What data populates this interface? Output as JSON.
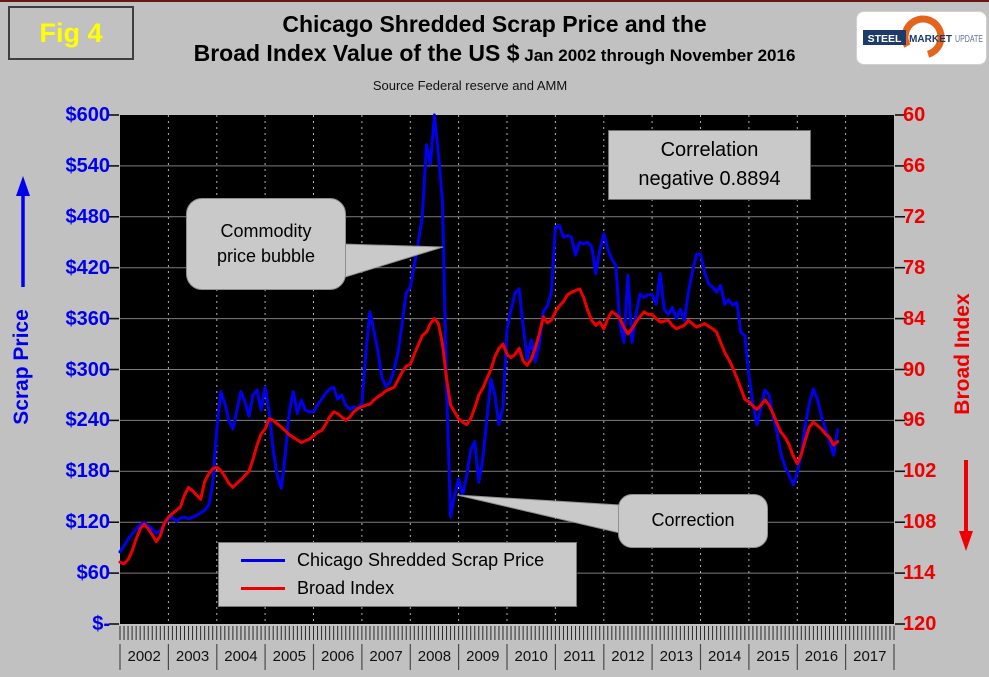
{
  "fig_label": "Fig 4",
  "title": {
    "line1": "Chicago Shredded Scrap Price and the",
    "line2": "Broad Index Value of the US $",
    "line2_suffix": " Jan 2002 through November 2016",
    "subtitle": "Source Federal reserve and AMM"
  },
  "logo": {
    "steel": "STEEL",
    "market": "MARKET",
    "update": "UPDATE"
  },
  "axes": {
    "left": {
      "label": "Scrap Price",
      "color": "#0000ee",
      "ticks": [
        "$600",
        "$540",
        "$480",
        "$420",
        "$360",
        "$300",
        "$240",
        "$180",
        "$120",
        "$60",
        "$-"
      ]
    },
    "right": {
      "label": "Broad Index",
      "color": "#ee0000",
      "ticks": [
        "60",
        "66",
        "72",
        "78",
        "84",
        "90",
        "96",
        "102",
        "108",
        "114",
        "120"
      ]
    }
  },
  "x_axis": {
    "years": [
      "2002",
      "2003",
      "2004",
      "2005",
      "2006",
      "2007",
      "2008",
      "2009",
      "2010",
      "2011",
      "2012",
      "2013",
      "2014",
      "2015",
      "2016",
      "2017"
    ]
  },
  "legend": {
    "items": [
      {
        "label": "Chicago Shredded Scrap Price",
        "color": "#0000ee"
      },
      {
        "label": "Broad Index",
        "color": "#ee0000"
      }
    ]
  },
  "annotations": {
    "bubble": {
      "line1": "Commodity",
      "line2": "price bubble"
    },
    "correction": {
      "text": "Correction"
    },
    "correlation": {
      "line1": "Correlation",
      "line2": "negative 0.8894"
    }
  },
  "chart_data": {
    "type": "line",
    "title": "Chicago Shredded Scrap Price and the Broad Index Value of the US $ Jan 2002 through November 2016",
    "subtitle": "Source Federal reserve and AMM",
    "x_unit": "month",
    "x_start": "2002-01",
    "x_end": "2016-11",
    "x_axis_span_years": [
      2002,
      2018
    ],
    "grid": {
      "horizontal": "solid",
      "vertical": "dashed-yearly"
    },
    "legend_position": "bottom-left-inside",
    "left_axis": {
      "label": "Scrap Price",
      "unit": "$/gross ton",
      "ylim": [
        0,
        600
      ],
      "tick_step": 60
    },
    "right_axis": {
      "label": "Broad Index",
      "ylim": [
        60,
        120
      ],
      "tick_step": 6,
      "inverted": true
    },
    "correlation": -0.8894,
    "series": [
      {
        "name": "Chicago Shredded Scrap Price",
        "color": "#0000ee",
        "axis": "left",
        "values": [
          85,
          92,
          100,
          106,
          112,
          117,
          120,
          116,
          112,
          107,
          110,
          118,
          124,
          126,
          121,
          125,
          126,
          124,
          126,
          128,
          131,
          134,
          140,
          165,
          230,
          274,
          260,
          240,
          230,
          252,
          274,
          262,
          245,
          270,
          276,
          252,
          279,
          250,
          205,
          175,
          160,
          200,
          250,
          274,
          248,
          264,
          252,
          250,
          250,
          258,
          265,
          272,
          277,
          279,
          265,
          270,
          258,
          253,
          256,
          253,
          260,
          320,
          368,
          345,
          321,
          290,
          280,
          285,
          300,
          321,
          355,
          390,
          397,
          423,
          450,
          480,
          565,
          542,
          600,
          553,
          497,
          280,
          126,
          152,
          171,
          152,
          175,
          205,
          215,
          167,
          195,
          240,
          289,
          270,
          235,
          255,
          348,
          370,
          390,
          395,
          352,
          312,
          335,
          309,
          330,
          368,
          375,
          390,
          468,
          470,
          456,
          458,
          456,
          435,
          450,
          448,
          450,
          445,
          413,
          440,
          460,
          442,
          430,
          423,
          354,
          332,
          411,
          332,
          365,
          389,
          385,
          388,
          388,
          377,
          413,
          371,
          365,
          373,
          360,
          371,
          358,
          391,
          415,
          436,
          436,
          415,
          401,
          397,
          391,
          399,
          377,
          382,
          376,
          379,
          344,
          340,
          293,
          260,
          235,
          255,
          276,
          270,
          245,
          225,
          200,
          185,
          175,
          164,
          179,
          200,
          235,
          260,
          277,
          265,
          245,
          230,
          215,
          199,
          229
        ]
      },
      {
        "name": "Broad Index",
        "color": "#ee0000",
        "axis": "right",
        "values": [
          112.7,
          112.9,
          112.4,
          111.4,
          110.0,
          108.8,
          108.2,
          108.8,
          109.5,
          110.3,
          109.6,
          108.1,
          107.4,
          107.0,
          106.6,
          106.2,
          104.8,
          103.9,
          104.3,
          104.8,
          105.3,
          103.2,
          102.3,
          101.7,
          101.5,
          101.9,
          102.6,
          103.4,
          103.9,
          103.4,
          103.0,
          102.5,
          102.0,
          100.6,
          98.9,
          97.6,
          97.0,
          95.8,
          96.0,
          96.4,
          96.8,
          97.2,
          97.7,
          98.0,
          98.3,
          98.6,
          98.4,
          98.2,
          97.8,
          97.4,
          97.2,
          96.5,
          95.6,
          95.0,
          95.2,
          95.6,
          96.0,
          95.6,
          95.0,
          94.6,
          94.4,
          94.2,
          94.1,
          93.6,
          93.2,
          92.9,
          92.5,
          92.3,
          92.1,
          91.2,
          90.3,
          89.6,
          89.4,
          88.2,
          87.1,
          86.0,
          85.6,
          84.6,
          84.0,
          84.6,
          87.0,
          91.0,
          94.2,
          95.0,
          95.8,
          96.2,
          96.5,
          95.8,
          94.5,
          93.0,
          92.2,
          91.1,
          90.0,
          88.5,
          87.5,
          87.0,
          88.2,
          88.6,
          88.2,
          87.5,
          89.0,
          89.5,
          88.8,
          87.5,
          85.8,
          83.8,
          84.5,
          84.2,
          83.2,
          82.5,
          82.0,
          81.2,
          80.9,
          80.7,
          80.5,
          81.5,
          83.0,
          84.2,
          84.8,
          84.4,
          85.2,
          84.0,
          83.2,
          83.5,
          84.0,
          85.0,
          85.8,
          85.2,
          84.4,
          83.8,
          83.2,
          83.5,
          83.5,
          84.0,
          84.4,
          84.3,
          84.2,
          84.8,
          85.2,
          85.0,
          84.8,
          84.2,
          84.6,
          85.0,
          84.8,
          84.6,
          84.9,
          85.2,
          85.6,
          86.8,
          88.0,
          88.8,
          89.8,
          91.0,
          92.2,
          93.5,
          93.8,
          94.3,
          94.7,
          94.2,
          93.6,
          94.2,
          95.2,
          96.4,
          97.4,
          98.0,
          98.9,
          100.2,
          101.1,
          100.0,
          98.3,
          96.8,
          96.2,
          96.6,
          97.0,
          97.6,
          98.0,
          98.9,
          98.5
        ]
      }
    ]
  }
}
